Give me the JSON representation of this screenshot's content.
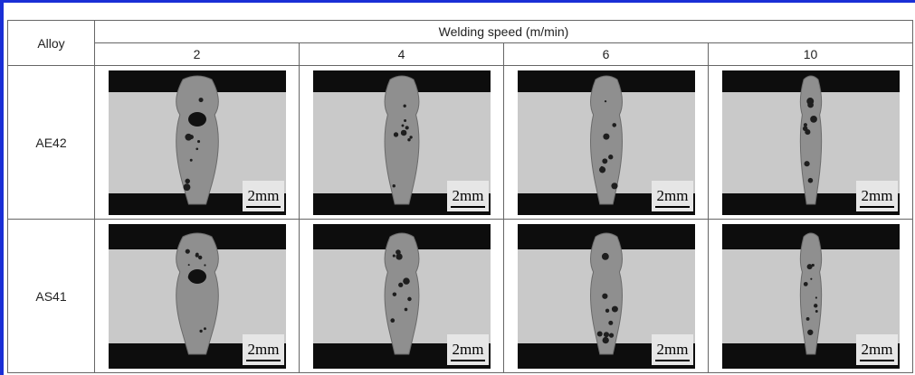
{
  "table": {
    "header": {
      "alloy": "Alloy",
      "group": "Welding speed (m/min)",
      "speeds": [
        "2",
        "4",
        "6",
        "10"
      ]
    },
    "rows": [
      {
        "alloy": "AE42",
        "scale_bars": [
          "2mm",
          "2mm",
          "2mm",
          "2mm"
        ]
      },
      {
        "alloy": "AS41",
        "scale_bars": [
          "2mm",
          "2mm",
          "2mm",
          "2mm"
        ]
      }
    ]
  }
}
